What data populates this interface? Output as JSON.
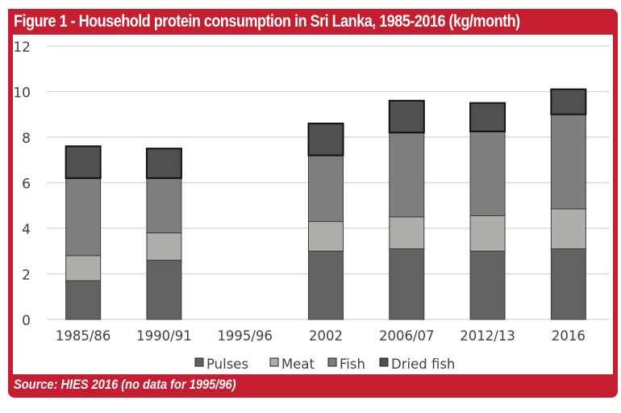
{
  "figure": {
    "title": "Figure 1 - Household protein consumption in Sri Lanka, 1985-2016 (kg/month)",
    "source": "Source: HIES 2016 (no data for 1995/96)"
  },
  "colors": {
    "frame": "#c41e30",
    "Pulses": "#636260",
    "Meat": "#b0aeab",
    "Fish": "#807e7c",
    "Dried fish": "#505050",
    "gridline": "#d4d4d4",
    "axis_text": "#404040"
  },
  "chart_data": {
    "type": "bar",
    "stacked": true,
    "title": "Figure 1 - Household protein consumption in Sri Lanka, 1985-2016 (kg/month)",
    "xlabel": "",
    "ylabel": "",
    "ylim": [
      0,
      12
    ],
    "yticks": [
      0,
      2,
      4,
      6,
      8,
      10,
      12
    ],
    "grid": true,
    "legend": "bottom",
    "categories": [
      "1985/86",
      "1990/91",
      "1995/96",
      "2002",
      "2006/07",
      "2012/13",
      "2016"
    ],
    "series": [
      {
        "name": "Pulses",
        "values": [
          1.7,
          2.6,
          null,
          3.0,
          3.1,
          3.0,
          3.1
        ]
      },
      {
        "name": "Meat",
        "values": [
          1.1,
          1.2,
          null,
          1.3,
          1.4,
          1.55,
          1.75
        ]
      },
      {
        "name": "Fish",
        "values": [
          3.4,
          2.4,
          null,
          2.9,
          3.7,
          3.7,
          4.15
        ]
      },
      {
        "name": "Dried fish",
        "values": [
          1.4,
          1.3,
          null,
          1.4,
          1.4,
          1.25,
          1.1
        ]
      }
    ],
    "totals": [
      7.6,
      7.5,
      null,
      8.6,
      9.6,
      9.5,
      10.1
    ],
    "annotation": "no data for 1995/96"
  }
}
